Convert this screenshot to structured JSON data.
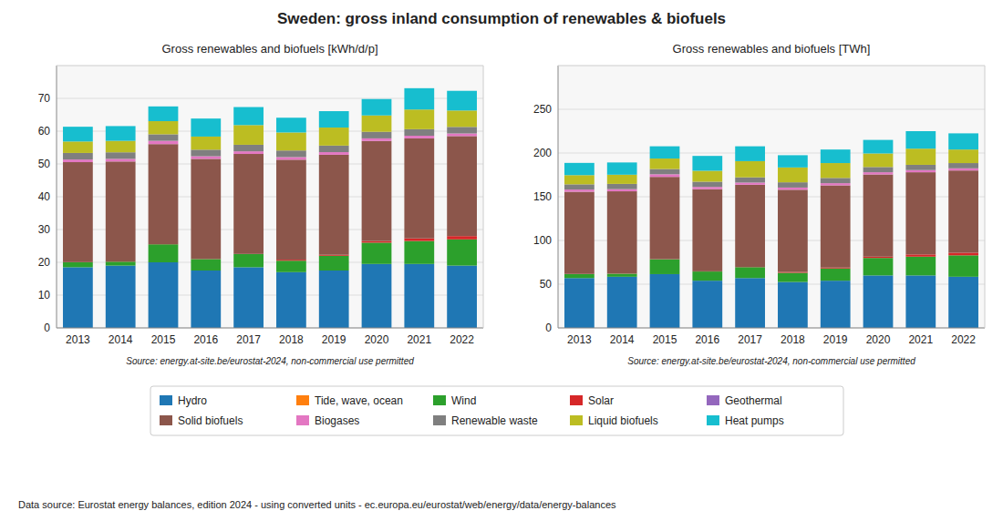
{
  "title": "Sweden: gross inland consumption of renewables & biofuels",
  "annotations": [
    "Data source: Eurostat energy balances, edition 2024 - using converted units - ec.europa.eu/eurostat/web/energy/data/energy-balances"
  ],
  "chart_data": [
    {
      "type": "bar",
      "stacked": true,
      "grid": true,
      "legend": "bottom",
      "title": "Gross renewables and biofuels [kWh/d/p]",
      "annotations": [
        "Source: energy.at-site.be/eurostat-2024, non-commercial use permitted"
      ],
      "categories": [
        "2013",
        "2014",
        "2015",
        "2016",
        "2017",
        "2018",
        "2019",
        "2020",
        "2021",
        "2022"
      ],
      "ylim": [
        0,
        80
      ],
      "yticks": [
        0,
        10,
        20,
        30,
        40,
        50,
        60,
        70
      ],
      "series": [
        {
          "name": "Hydro",
          "color": "#1f77b4",
          "values": [
            18.5,
            19.0,
            20.0,
            17.5,
            18.5,
            17.0,
            17.5,
            19.5,
            19.5,
            19.0
          ]
        },
        {
          "name": "Tide, wave, ocean",
          "color": "#ff7f0e",
          "values": [
            0.0,
            0.0,
            0.0,
            0.0,
            0.0,
            0.0,
            0.0,
            0.0,
            0.0,
            0.0
          ]
        },
        {
          "name": "Wind",
          "color": "#2ca02c",
          "values": [
            1.5,
            1.2,
            5.5,
            3.5,
            4.0,
            3.5,
            4.5,
            6.5,
            7.0,
            8.0
          ]
        },
        {
          "name": "Solar",
          "color": "#d62728",
          "values": [
            0.05,
            0.05,
            0.05,
            0.05,
            0.05,
            0.3,
            0.3,
            0.5,
            0.8,
            1.0
          ]
        },
        {
          "name": "Geothermal",
          "color": "#9467bd",
          "values": [
            0.0,
            0.0,
            0.0,
            0.0,
            0.0,
            0.0,
            0.0,
            0.0,
            0.0,
            0.0
          ]
        },
        {
          "name": "Solid biofuels",
          "color": "#8c564b",
          "values": [
            30.5,
            30.5,
            30.5,
            30.5,
            30.5,
            30.5,
            30.5,
            30.5,
            30.5,
            30.5
          ]
        },
        {
          "name": "Biogases",
          "color": "#e377c2",
          "values": [
            0.8,
            0.8,
            1.0,
            0.8,
            0.8,
            0.8,
            0.8,
            0.8,
            0.8,
            0.8
          ]
        },
        {
          "name": "Renewable waste",
          "color": "#7f7f7f",
          "values": [
            2.0,
            2.0,
            2.0,
            2.0,
            2.0,
            2.0,
            2.0,
            2.0,
            2.0,
            2.0
          ]
        },
        {
          "name": "Liquid biofuels",
          "color": "#bcbd22",
          "values": [
            3.5,
            3.5,
            4.0,
            4.0,
            6.0,
            5.5,
            5.5,
            5.0,
            6.0,
            5.0
          ]
        },
        {
          "name": "Heat pumps",
          "color": "#17becf",
          "values": [
            4.5,
            4.5,
            4.5,
            5.5,
            5.5,
            4.5,
            5.0,
            5.0,
            6.5,
            6.0
          ]
        }
      ]
    },
    {
      "type": "bar",
      "stacked": true,
      "grid": true,
      "title": "Gross renewables and biofuels [TWh]",
      "annotations": [
        "Source: energy.at-site.be/eurostat-2024, non-commercial use permitted"
      ],
      "categories": [
        "2013",
        "2014",
        "2015",
        "2016",
        "2017",
        "2018",
        "2019",
        "2020",
        "2021",
        "2022"
      ],
      "ylim": [
        0,
        300
      ],
      "yticks": [
        0,
        50,
        100,
        150,
        200,
        250
      ],
      "series": [
        {
          "name": "Hydro",
          "color": "#1f77b4",
          "values": [
            57.0,
            58.5,
            61.5,
            54.0,
            57.0,
            52.5,
            54.0,
            60.0,
            60.0,
            58.5
          ]
        },
        {
          "name": "Tide, wave, ocean",
          "color": "#ff7f0e",
          "values": [
            0.0,
            0.0,
            0.0,
            0.0,
            0.0,
            0.0,
            0.0,
            0.0,
            0.0,
            0.0
          ]
        },
        {
          "name": "Wind",
          "color": "#2ca02c",
          "values": [
            4.5,
            3.5,
            17.0,
            10.5,
            12.5,
            10.5,
            14.0,
            20.0,
            21.5,
            24.5
          ]
        },
        {
          "name": "Solar",
          "color": "#d62728",
          "values": [
            0.2,
            0.2,
            0.2,
            0.2,
            0.2,
            1.0,
            1.0,
            1.5,
            2.5,
            3.0
          ]
        },
        {
          "name": "Geothermal",
          "color": "#9467bd",
          "values": [
            0.0,
            0.0,
            0.0,
            0.0,
            0.0,
            0.0,
            0.0,
            0.0,
            0.0,
            0.0
          ]
        },
        {
          "name": "Solid biofuels",
          "color": "#8c564b",
          "values": [
            94.0,
            94.0,
            94.0,
            94.0,
            94.0,
            94.0,
            94.0,
            94.0,
            94.0,
            94.0
          ]
        },
        {
          "name": "Biogases",
          "color": "#e377c2",
          "values": [
            2.5,
            2.5,
            3.0,
            2.5,
            2.5,
            2.5,
            2.5,
            2.5,
            2.5,
            2.5
          ]
        },
        {
          "name": "Renewable waste",
          "color": "#7f7f7f",
          "values": [
            6.0,
            6.0,
            6.0,
            6.0,
            6.0,
            6.0,
            6.0,
            6.0,
            6.0,
            6.0
          ]
        },
        {
          "name": "Liquid biofuels",
          "color": "#bcbd22",
          "values": [
            10.5,
            10.5,
            12.0,
            12.5,
            18.5,
            17.0,
            17.0,
            15.5,
            18.5,
            15.5
          ]
        },
        {
          "name": "Heat pumps",
          "color": "#17becf",
          "values": [
            14.0,
            14.0,
            14.0,
            17.0,
            17.0,
            14.0,
            15.5,
            15.5,
            20.0,
            18.5
          ]
        }
      ]
    }
  ]
}
